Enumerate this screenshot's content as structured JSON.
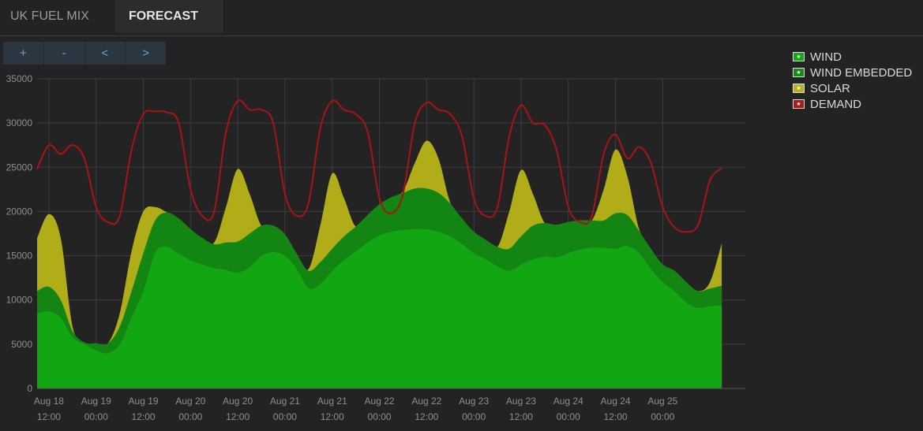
{
  "tabs": [
    {
      "label": "UK FUEL MIX"
    },
    {
      "label": "FORECAST"
    }
  ],
  "toolbar": {
    "zoom_in": "+",
    "zoom_out": "-",
    "prev": "<",
    "next": ">"
  },
  "legend": [
    {
      "label": "WIND",
      "color": "#14a614"
    },
    {
      "label": "WIND EMBEDDED",
      "color": "#158a15"
    },
    {
      "label": "SOLAR",
      "color": "#b5b118"
    },
    {
      "label": "DEMAND",
      "color": "#b01818"
    }
  ],
  "colors": {
    "background": "#232323",
    "grid": "#3d3d3d",
    "wind": "#12a612",
    "wind_embedded": "#138513",
    "solar": "#b1ad18",
    "demand": "#a81414"
  },
  "chart_data": {
    "type": "area",
    "ylim": [
      0,
      35000
    ],
    "yticks": [
      0,
      5000,
      10000,
      15000,
      20000,
      25000,
      30000,
      35000
    ],
    "xlim": [
      "Aug 18 09:00",
      "Aug 25 21:00"
    ],
    "xticks": [
      {
        "date": "Aug 18",
        "time": "12:00"
      },
      {
        "date": "Aug 19",
        "time": "00:00"
      },
      {
        "date": "Aug 19",
        "time": "12:00"
      },
      {
        "date": "Aug 20",
        "time": "00:00"
      },
      {
        "date": "Aug 20",
        "time": "12:00"
      },
      {
        "date": "Aug 21",
        "time": "00:00"
      },
      {
        "date": "Aug 21",
        "time": "12:00"
      },
      {
        "date": "Aug 22",
        "time": "00:00"
      },
      {
        "date": "Aug 22",
        "time": "12:00"
      },
      {
        "date": "Aug 23",
        "time": "00:00"
      },
      {
        "date": "Aug 23",
        "time": "12:00"
      },
      {
        "date": "Aug 24",
        "time": "00:00"
      },
      {
        "date": "Aug 24",
        "time": "12:00"
      },
      {
        "date": "Aug 25",
        "time": "00:00"
      }
    ],
    "stacked": true,
    "series": [
      {
        "name": "WIND",
        "points": [
          [
            "Aug 18 09:00",
            8500
          ],
          [
            "Aug 18 12:00",
            8700
          ],
          [
            "Aug 18 15:00",
            8000
          ],
          [
            "Aug 18 18:00",
            5800
          ],
          [
            "Aug 18 21:00",
            5000
          ],
          [
            "Aug 19 00:00",
            4300
          ],
          [
            "Aug 19 03:00",
            4000
          ],
          [
            "Aug 19 06:00",
            5000
          ],
          [
            "Aug 19 09:00",
            8000
          ],
          [
            "Aug 19 12:00",
            11000
          ],
          [
            "Aug 19 15:00",
            15300
          ],
          [
            "Aug 19 18:00",
            16000
          ],
          [
            "Aug 19 21:00",
            15200
          ],
          [
            "Aug 20 00:00",
            14500
          ],
          [
            "Aug 20 03:00",
            14000
          ],
          [
            "Aug 20 06:00",
            13600
          ],
          [
            "Aug 20 09:00",
            13400
          ],
          [
            "Aug 20 12:00",
            13100
          ],
          [
            "Aug 20 15:00",
            13700
          ],
          [
            "Aug 20 18:00",
            15000
          ],
          [
            "Aug 20 21:00",
            15400
          ],
          [
            "Aug 21 00:00",
            15000
          ],
          [
            "Aug 21 03:00",
            13500
          ],
          [
            "Aug 21 06:00",
            11300
          ],
          [
            "Aug 21 09:00",
            11800
          ],
          [
            "Aug 21 12:00",
            13300
          ],
          [
            "Aug 21 15:00",
            14500
          ],
          [
            "Aug 21 18:00",
            15500
          ],
          [
            "Aug 21 21:00",
            16500
          ],
          [
            "Aug 22 00:00",
            17300
          ],
          [
            "Aug 22 03:00",
            17700
          ],
          [
            "Aug 22 06:00",
            17900
          ],
          [
            "Aug 22 09:00",
            18000
          ],
          [
            "Aug 22 12:00",
            18000
          ],
          [
            "Aug 22 15:00",
            17700
          ],
          [
            "Aug 22 18:00",
            17200
          ],
          [
            "Aug 22 21:00",
            16300
          ],
          [
            "Aug 23 00:00",
            15300
          ],
          [
            "Aug 23 03:00",
            14600
          ],
          [
            "Aug 23 06:00",
            13800
          ],
          [
            "Aug 23 09:00",
            13300
          ],
          [
            "Aug 23 12:00",
            14000
          ],
          [
            "Aug 23 15:00",
            14600
          ],
          [
            "Aug 23 18:00",
            14900
          ],
          [
            "Aug 23 21:00",
            14800
          ],
          [
            "Aug 24 00:00",
            15300
          ],
          [
            "Aug 24 03:00",
            15700
          ],
          [
            "Aug 24 06:00",
            15900
          ],
          [
            "Aug 24 09:00",
            15900
          ],
          [
            "Aug 24 12:00",
            15800
          ],
          [
            "Aug 24 15:00",
            16100
          ],
          [
            "Aug 24 18:00",
            15300
          ],
          [
            "Aug 24 21:00",
            13500
          ],
          [
            "Aug 25 00:00",
            12000
          ],
          [
            "Aug 25 03:00",
            11000
          ],
          [
            "Aug 25 06:00",
            9700
          ],
          [
            "Aug 25 09:00",
            9100
          ],
          [
            "Aug 25 12:00",
            9300
          ],
          [
            "Aug 25 15:00",
            9400
          ]
        ]
      },
      {
        "name": "WIND EMBEDDED",
        "points": [
          [
            "Aug 18 09:00",
            11000
          ],
          [
            "Aug 18 12:00",
            11500
          ],
          [
            "Aug 18 15:00",
            10000
          ],
          [
            "Aug 18 18:00",
            6500
          ],
          [
            "Aug 18 21:00",
            5200
          ],
          [
            "Aug 19 00:00",
            5100
          ],
          [
            "Aug 19 03:00",
            5100
          ],
          [
            "Aug 19 06:00",
            7000
          ],
          [
            "Aug 19 09:00",
            11000
          ],
          [
            "Aug 19 12:00",
            15300
          ],
          [
            "Aug 19 15:00",
            19000
          ],
          [
            "Aug 19 18:00",
            19900
          ],
          [
            "Aug 19 21:00",
            19200
          ],
          [
            "Aug 20 00:00",
            18000
          ],
          [
            "Aug 20 03:00",
            17000
          ],
          [
            "Aug 20 06:00",
            16300
          ],
          [
            "Aug 20 09:00",
            16500
          ],
          [
            "Aug 20 12:00",
            16600
          ],
          [
            "Aug 20 15:00",
            17500
          ],
          [
            "Aug 20 18:00",
            18400
          ],
          [
            "Aug 20 21:00",
            18400
          ],
          [
            "Aug 21 00:00",
            17400
          ],
          [
            "Aug 21 03:00",
            15200
          ],
          [
            "Aug 21 06:00",
            13300
          ],
          [
            "Aug 21 09:00",
            14300
          ],
          [
            "Aug 21 12:00",
            15800
          ],
          [
            "Aug 21 15:00",
            17200
          ],
          [
            "Aug 21 18:00",
            18300
          ],
          [
            "Aug 21 21:00",
            19600
          ],
          [
            "Aug 22 00:00",
            20800
          ],
          [
            "Aug 22 03:00",
            21600
          ],
          [
            "Aug 22 06:00",
            22100
          ],
          [
            "Aug 22 09:00",
            22600
          ],
          [
            "Aug 22 12:00",
            22600
          ],
          [
            "Aug 22 15:00",
            22100
          ],
          [
            "Aug 22 18:00",
            20900
          ],
          [
            "Aug 22 21:00",
            19200
          ],
          [
            "Aug 23 00:00",
            17700
          ],
          [
            "Aug 23 03:00",
            16800
          ],
          [
            "Aug 23 06:00",
            16000
          ],
          [
            "Aug 23 09:00",
            15800
          ],
          [
            "Aug 23 12:00",
            17200
          ],
          [
            "Aug 23 15:00",
            18400
          ],
          [
            "Aug 23 18:00",
            18700
          ],
          [
            "Aug 23 21:00",
            18500
          ],
          [
            "Aug 24 00:00",
            18800
          ],
          [
            "Aug 24 03:00",
            19000
          ],
          [
            "Aug 24 06:00",
            19000
          ],
          [
            "Aug 24 09:00",
            19000
          ],
          [
            "Aug 24 12:00",
            19800
          ],
          [
            "Aug 24 15:00",
            19600
          ],
          [
            "Aug 24 18:00",
            17800
          ],
          [
            "Aug 24 21:00",
            15800
          ],
          [
            "Aug 25 00:00",
            14000
          ],
          [
            "Aug 25 03:00",
            13300
          ],
          [
            "Aug 25 06:00",
            12000
          ],
          [
            "Aug 25 09:00",
            11000
          ],
          [
            "Aug 25 12:00",
            11300
          ],
          [
            "Aug 25 15:00",
            11600
          ]
        ]
      },
      {
        "name": "SOLAR",
        "points": [
          [
            "Aug 18 09:00",
            17000
          ],
          [
            "Aug 18 12:00",
            19700
          ],
          [
            "Aug 18 15:00",
            17000
          ],
          [
            "Aug 18 18:00",
            7000
          ],
          [
            "Aug 18 21:00",
            5200
          ],
          [
            "Aug 19 00:00",
            5100
          ],
          [
            "Aug 19 03:00",
            5100
          ],
          [
            "Aug 19 06:00",
            8500
          ],
          [
            "Aug 19 09:00",
            15500
          ],
          [
            "Aug 19 12:00",
            20000
          ],
          [
            "Aug 19 15:00",
            20500
          ],
          [
            "Aug 19 18:00",
            19900
          ],
          [
            "Aug 19 21:00",
            19200
          ],
          [
            "Aug 20 00:00",
            18000
          ],
          [
            "Aug 20 03:00",
            17000
          ],
          [
            "Aug 20 06:00",
            16500
          ],
          [
            "Aug 20 09:00",
            20500
          ],
          [
            "Aug 20 12:00",
            24800
          ],
          [
            "Aug 20 15:00",
            22000
          ],
          [
            "Aug 20 18:00",
            18400
          ],
          [
            "Aug 20 21:00",
            18400
          ],
          [
            "Aug 21 00:00",
            17400
          ],
          [
            "Aug 21 03:00",
            15200
          ],
          [
            "Aug 21 06:00",
            13500
          ],
          [
            "Aug 21 09:00",
            18500
          ],
          [
            "Aug 21 12:00",
            24300
          ],
          [
            "Aug 21 15:00",
            21500
          ],
          [
            "Aug 21 18:00",
            18300
          ],
          [
            "Aug 21 21:00",
            19600
          ],
          [
            "Aug 22 00:00",
            20800
          ],
          [
            "Aug 22 03:00",
            21600
          ],
          [
            "Aug 22 06:00",
            22300
          ],
          [
            "Aug 22 09:00",
            25500
          ],
          [
            "Aug 22 12:00",
            28000
          ],
          [
            "Aug 22 15:00",
            26000
          ],
          [
            "Aug 22 18:00",
            21000
          ],
          [
            "Aug 22 21:00",
            19200
          ],
          [
            "Aug 23 00:00",
            17700
          ],
          [
            "Aug 23 03:00",
            16800
          ],
          [
            "Aug 23 06:00",
            16000
          ],
          [
            "Aug 23 09:00",
            20000
          ],
          [
            "Aug 23 12:00",
            24700
          ],
          [
            "Aug 23 15:00",
            22000
          ],
          [
            "Aug 23 18:00",
            18700
          ],
          [
            "Aug 23 21:00",
            18500
          ],
          [
            "Aug 24 00:00",
            18800
          ],
          [
            "Aug 24 03:00",
            19000
          ],
          [
            "Aug 24 06:00",
            19000
          ],
          [
            "Aug 24 09:00",
            22500
          ],
          [
            "Aug 24 12:00",
            27000
          ],
          [
            "Aug 24 15:00",
            24000
          ],
          [
            "Aug 24 18:00",
            18000
          ],
          [
            "Aug 24 21:00",
            15800
          ],
          [
            "Aug 25 00:00",
            14000
          ],
          [
            "Aug 25 03:00",
            13300
          ],
          [
            "Aug 25 06:00",
            12000
          ],
          [
            "Aug 25 09:00",
            11000
          ],
          [
            "Aug 25 12:00",
            12000
          ],
          [
            "Aug 25 15:00",
            16400
          ]
        ]
      },
      {
        "name": "DEMAND",
        "points": [
          [
            "Aug 18 09:00",
            24800
          ],
          [
            "Aug 18 12:00",
            27500
          ],
          [
            "Aug 18 15:00",
            26500
          ],
          [
            "Aug 18 18:00",
            27500
          ],
          [
            "Aug 18 21:00",
            26000
          ],
          [
            "Aug 19 00:00",
            20500
          ],
          [
            "Aug 19 03:00",
            18800
          ],
          [
            "Aug 19 06:00",
            19500
          ],
          [
            "Aug 19 09:00",
            27000
          ],
          [
            "Aug 19 12:00",
            31000
          ],
          [
            "Aug 19 15:00",
            31300
          ],
          [
            "Aug 19 18:00",
            31200
          ],
          [
            "Aug 19 21:00",
            30000
          ],
          [
            "Aug 20 00:00",
            22500
          ],
          [
            "Aug 20 03:00",
            19500
          ],
          [
            "Aug 20 06:00",
            20000
          ],
          [
            "Aug 20 09:00",
            29000
          ],
          [
            "Aug 20 12:00",
            32500
          ],
          [
            "Aug 20 15:00",
            31500
          ],
          [
            "Aug 20 18:00",
            31500
          ],
          [
            "Aug 20 21:00",
            30000
          ],
          [
            "Aug 21 00:00",
            22000
          ],
          [
            "Aug 21 03:00",
            19500
          ],
          [
            "Aug 21 06:00",
            21000
          ],
          [
            "Aug 21 09:00",
            29500
          ],
          [
            "Aug 21 12:00",
            32500
          ],
          [
            "Aug 21 15:00",
            31500
          ],
          [
            "Aug 21 18:00",
            31000
          ],
          [
            "Aug 21 21:00",
            29000
          ],
          [
            "Aug 22 00:00",
            21500
          ],
          [
            "Aug 22 03:00",
            19800
          ],
          [
            "Aug 22 06:00",
            22000
          ],
          [
            "Aug 22 09:00",
            30000
          ],
          [
            "Aug 22 12:00",
            32300
          ],
          [
            "Aug 22 15:00",
            31500
          ],
          [
            "Aug 22 18:00",
            31000
          ],
          [
            "Aug 22 21:00",
            28500
          ],
          [
            "Aug 23 00:00",
            21500
          ],
          [
            "Aug 23 03:00",
            19500
          ],
          [
            "Aug 23 06:00",
            20500
          ],
          [
            "Aug 23 09:00",
            28500
          ],
          [
            "Aug 23 12:00",
            32000
          ],
          [
            "Aug 23 15:00",
            30000
          ],
          [
            "Aug 23 18:00",
            29800
          ],
          [
            "Aug 23 21:00",
            27000
          ],
          [
            "Aug 24 00:00",
            20500
          ],
          [
            "Aug 24 03:00",
            18800
          ],
          [
            "Aug 24 06:00",
            19500
          ],
          [
            "Aug 24 09:00",
            26500
          ],
          [
            "Aug 24 12:00",
            28700
          ],
          [
            "Aug 24 15:00",
            26000
          ],
          [
            "Aug 24 18:00",
            27300
          ],
          [
            "Aug 24 21:00",
            25500
          ],
          [
            "Aug 25 00:00",
            20500
          ],
          [
            "Aug 25 03:00",
            18200
          ],
          [
            "Aug 25 06:00",
            17700
          ],
          [
            "Aug 25 09:00",
            18500
          ],
          [
            "Aug 25 12:00",
            23500
          ],
          [
            "Aug 25 15:00",
            24900
          ]
        ]
      }
    ]
  }
}
